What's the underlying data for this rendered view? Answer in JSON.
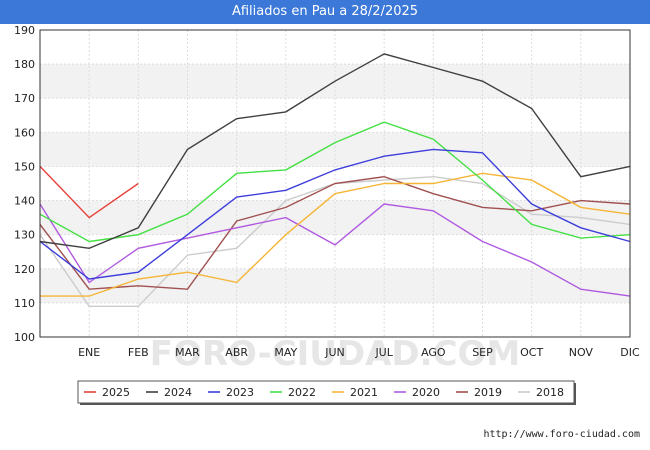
{
  "title": "Afiliados en Pau a 28/2/2025",
  "watermark": "FORO-CIUDAD.COM",
  "footer_url": "http://www.foro-ciudad.com",
  "chart_data": {
    "type": "line",
    "title": "Afiliados en Pau a 28/2/2025",
    "categories": [
      "",
      "ENE",
      "FEB",
      "MAR",
      "ABR",
      "MAY",
      "JUN",
      "JUL",
      "AGO",
      "SEP",
      "OCT",
      "NOV",
      "DIC"
    ],
    "ylim": [
      100,
      190
    ],
    "yticks": [
      100,
      110,
      120,
      130,
      140,
      150,
      160,
      170,
      180,
      190
    ],
    "grid": true,
    "legend_position": "bottom",
    "series": [
      {
        "name": "2025",
        "color": "#e8413b",
        "values": [
          150,
          135,
          145,
          null,
          null,
          null,
          null,
          null,
          null,
          null,
          null,
          null,
          null
        ]
      },
      {
        "name": "2024",
        "color": "#404040",
        "values": [
          128,
          126,
          132,
          155,
          164,
          166,
          175,
          183,
          179,
          175,
          167,
          147,
          150
        ]
      },
      {
        "name": "2023",
        "color": "#3e3edc",
        "values": [
          128,
          117,
          119,
          130,
          141,
          143,
          149,
          153,
          155,
          154,
          139,
          132,
          128
        ]
      },
      {
        "name": "2022",
        "color": "#44e044",
        "values": [
          136,
          128,
          130,
          136,
          148,
          149,
          157,
          163,
          158,
          146,
          133,
          129,
          130
        ]
      },
      {
        "name": "2021",
        "color": "#f5b537",
        "values": [
          112,
          112,
          117,
          119,
          116,
          130,
          142,
          145,
          145,
          148,
          146,
          138,
          136
        ]
      },
      {
        "name": "2020",
        "color": "#b05ae0",
        "values": [
          139,
          116,
          126,
          129,
          132,
          135,
          127,
          139,
          137,
          128,
          122,
          114,
          112
        ]
      },
      {
        "name": "2019",
        "color": "#a05050",
        "values": [
          133,
          114,
          115,
          114,
          134,
          138,
          145,
          147,
          142,
          138,
          137,
          140,
          139
        ]
      },
      {
        "name": "2018",
        "color": "#cccccc",
        "values": [
          130,
          109,
          109,
          124,
          126,
          140,
          145,
          146,
          147,
          145,
          136,
          135,
          133
        ]
      }
    ]
  }
}
